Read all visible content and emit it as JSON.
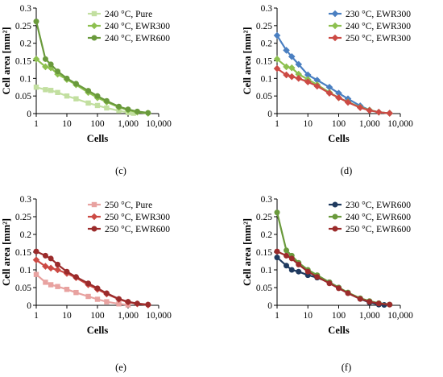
{
  "chart_data": [
    {
      "panel_label": "(c)",
      "type": "line",
      "xscale": "log",
      "xlim": [
        1,
        10000
      ],
      "ylim": [
        0,
        0.3
      ],
      "x_ticks": [
        "1",
        "10",
        "100",
        "1,000",
        "10,000"
      ],
      "y_ticks": [
        "0",
        "0.05",
        "0.1",
        "0.15",
        "0.2",
        "0.25",
        "0.3"
      ],
      "xlabel": "Cells",
      "ylabel": "Cell area [mm²]",
      "legend_position": "top-right",
      "series": [
        {
          "name": "240 °C, Pure",
          "color": "#c2dfa0",
          "marker": "square",
          "points": [
            [
              1,
              0.075
            ],
            [
              2,
              0.068
            ],
            [
              3,
              0.066
            ],
            [
              5,
              0.06
            ],
            [
              10,
              0.05
            ],
            [
              20,
              0.042
            ],
            [
              50,
              0.03
            ],
            [
              100,
              0.023
            ],
            [
              200,
              0.016
            ],
            [
              500,
              0.008
            ],
            [
              1000,
              0.003
            ],
            [
              1500,
              0.001
            ]
          ]
        },
        {
          "name": "240 °C, EWR300",
          "color": "#8dc04f",
          "marker": "diamond",
          "points": [
            [
              1,
              0.155
            ],
            [
              2,
              0.133
            ],
            [
              3,
              0.13
            ],
            [
              5,
              0.112
            ],
            [
              10,
              0.097
            ],
            [
              20,
              0.082
            ],
            [
              50,
              0.06
            ],
            [
              100,
              0.045
            ],
            [
              200,
              0.033
            ],
            [
              500,
              0.018
            ],
            [
              1000,
              0.01
            ],
            [
              2000,
              0.004
            ],
            [
              4500,
              0.001
            ]
          ]
        },
        {
          "name": "240 °C, EWR600",
          "color": "#6a9a3c",
          "marker": "circle",
          "points": [
            [
              1,
              0.262
            ],
            [
              2,
              0.155
            ],
            [
              3,
              0.14
            ],
            [
              5,
              0.12
            ],
            [
              10,
              0.1
            ],
            [
              20,
              0.085
            ],
            [
              50,
              0.065
            ],
            [
              100,
              0.05
            ],
            [
              200,
              0.036
            ],
            [
              500,
              0.02
            ],
            [
              1000,
              0.012
            ],
            [
              2000,
              0.006
            ],
            [
              4500,
              0.002
            ]
          ]
        }
      ]
    },
    {
      "panel_label": "(d)",
      "type": "line",
      "xscale": "log",
      "xlim": [
        1,
        10000
      ],
      "ylim": [
        0,
        0.3
      ],
      "x_ticks": [
        "1",
        "10",
        "100",
        "1,000",
        "10,000"
      ],
      "y_ticks": [
        "0",
        "0.05",
        "0.1",
        "0.15",
        "0.2",
        "0.25",
        "0.3"
      ],
      "xlabel": "Cells",
      "ylabel": "Cell area [mm²]",
      "legend_position": "top-right",
      "series": [
        {
          "name": "230 °C, EWR300",
          "color": "#4a7fc1",
          "marker": "diamond",
          "points": [
            [
              1,
              0.222
            ],
            [
              2,
              0.18
            ],
            [
              3,
              0.162
            ],
            [
              5,
              0.14
            ],
            [
              10,
              0.11
            ],
            [
              20,
              0.095
            ],
            [
              50,
              0.075
            ],
            [
              100,
              0.058
            ],
            [
              200,
              0.042
            ],
            [
              500,
              0.022
            ],
            [
              1000,
              0.01
            ],
            [
              2000,
              0.004
            ],
            [
              4500,
              0.001
            ]
          ]
        },
        {
          "name": "240 °C, EWR300",
          "color": "#8dc04f",
          "marker": "diamond",
          "points": [
            [
              1,
              0.155
            ],
            [
              2,
              0.133
            ],
            [
              3,
              0.13
            ],
            [
              5,
              0.112
            ],
            [
              10,
              0.097
            ],
            [
              20,
              0.082
            ],
            [
              50,
              0.06
            ],
            [
              100,
              0.045
            ],
            [
              200,
              0.033
            ],
            [
              500,
              0.018
            ],
            [
              1000,
              0.01
            ],
            [
              2000,
              0.004
            ],
            [
              4500,
              0.001
            ]
          ]
        },
        {
          "name": "250 °C, EWR300",
          "color": "#cc4a44",
          "marker": "diamond",
          "points": [
            [
              1,
              0.128
            ],
            [
              2,
              0.11
            ],
            [
              3,
              0.105
            ],
            [
              5,
              0.1
            ],
            [
              10,
              0.09
            ],
            [
              20,
              0.078
            ],
            [
              50,
              0.058
            ],
            [
              100,
              0.045
            ],
            [
              200,
              0.032
            ],
            [
              500,
              0.017
            ],
            [
              1000,
              0.009
            ],
            [
              2000,
              0.004
            ],
            [
              4500,
              0.001
            ]
          ]
        }
      ]
    },
    {
      "panel_label": "(e)",
      "type": "line",
      "xscale": "log",
      "xlim": [
        1,
        10000
      ],
      "ylim": [
        0,
        0.3
      ],
      "x_ticks": [
        "1",
        "10",
        "100",
        "1,000",
        "10,000"
      ],
      "y_ticks": [
        "0",
        "0.05",
        "0.1",
        "0.15",
        "0.2",
        "0.25",
        "0.3"
      ],
      "xlabel": "Cells",
      "ylabel": "Cell area [mm²]",
      "legend_position": "top-right",
      "series": [
        {
          "name": "250 °C, Pure",
          "color": "#e8a2a0",
          "marker": "square",
          "points": [
            [
              1,
              0.087
            ],
            [
              2,
              0.065
            ],
            [
              3,
              0.058
            ],
            [
              5,
              0.053
            ],
            [
              10,
              0.045
            ],
            [
              20,
              0.036
            ],
            [
              50,
              0.025
            ],
            [
              100,
              0.017
            ],
            [
              200,
              0.01
            ],
            [
              500,
              0.004
            ],
            [
              1000,
              0.001
            ]
          ]
        },
        {
          "name": "250 °C, EWR300",
          "color": "#cc4a44",
          "marker": "diamond",
          "points": [
            [
              1,
              0.128
            ],
            [
              2,
              0.11
            ],
            [
              3,
              0.105
            ],
            [
              5,
              0.1
            ],
            [
              10,
              0.09
            ],
            [
              20,
              0.078
            ],
            [
              50,
              0.058
            ],
            [
              100,
              0.045
            ],
            [
              200,
              0.032
            ],
            [
              500,
              0.017
            ],
            [
              1000,
              0.009
            ],
            [
              2000,
              0.004
            ],
            [
              4500,
              0.001
            ]
          ]
        },
        {
          "name": "250 °C, EWR600",
          "color": "#9b2b2b",
          "marker": "circle",
          "points": [
            [
              1,
              0.152
            ],
            [
              2,
              0.14
            ],
            [
              3,
              0.132
            ],
            [
              5,
              0.115
            ],
            [
              10,
              0.095
            ],
            [
              20,
              0.08
            ],
            [
              50,
              0.062
            ],
            [
              100,
              0.048
            ],
            [
              200,
              0.034
            ],
            [
              500,
              0.018
            ],
            [
              1000,
              0.01
            ],
            [
              2000,
              0.005
            ],
            [
              4500,
              0.002
            ]
          ]
        }
      ]
    },
    {
      "panel_label": "(f)",
      "type": "line",
      "xscale": "log",
      "xlim": [
        1,
        10000
      ],
      "ylim": [
        0,
        0.3
      ],
      "x_ticks": [
        "1",
        "10",
        "100",
        "1,000",
        "10,000"
      ],
      "y_ticks": [
        "0",
        "0.05",
        "0.1",
        "0.15",
        "0.2",
        "0.25",
        "0.3"
      ],
      "xlabel": "Cells",
      "ylabel": "Cell area [mm²]",
      "legend_position": "top-right",
      "series": [
        {
          "name": "230 °C, EWR600",
          "color": "#1f3a5f",
          "marker": "circle",
          "points": [
            [
              1,
              0.135
            ],
            [
              2,
              0.112
            ],
            [
              3,
              0.1
            ],
            [
              5,
              0.095
            ],
            [
              10,
              0.085
            ],
            [
              20,
              0.078
            ],
            [
              50,
              0.065
            ],
            [
              100,
              0.05
            ],
            [
              200,
              0.035
            ],
            [
              500,
              0.018
            ],
            [
              1000,
              0.008
            ],
            [
              2000,
              0.002
            ],
            [
              3000,
              0.001
            ]
          ]
        },
        {
          "name": "240 °C, EWR600",
          "color": "#6a9a3c",
          "marker": "circle",
          "points": [
            [
              1,
              0.262
            ],
            [
              2,
              0.155
            ],
            [
              3,
              0.14
            ],
            [
              5,
              0.12
            ],
            [
              10,
              0.1
            ],
            [
              20,
              0.085
            ],
            [
              50,
              0.065
            ],
            [
              100,
              0.05
            ],
            [
              200,
              0.036
            ],
            [
              500,
              0.02
            ],
            [
              1000,
              0.012
            ],
            [
              2000,
              0.006
            ],
            [
              4500,
              0.002
            ]
          ]
        },
        {
          "name": "250 °C, EWR600",
          "color": "#9b2b2b",
          "marker": "circle",
          "points": [
            [
              1,
              0.152
            ],
            [
              2,
              0.14
            ],
            [
              3,
              0.132
            ],
            [
              5,
              0.115
            ],
            [
              10,
              0.095
            ],
            [
              20,
              0.08
            ],
            [
              50,
              0.062
            ],
            [
              100,
              0.048
            ],
            [
              200,
              0.034
            ],
            [
              500,
              0.018
            ],
            [
              1000,
              0.01
            ],
            [
              2000,
              0.005
            ],
            [
              4500,
              0.002
            ]
          ]
        }
      ]
    }
  ]
}
